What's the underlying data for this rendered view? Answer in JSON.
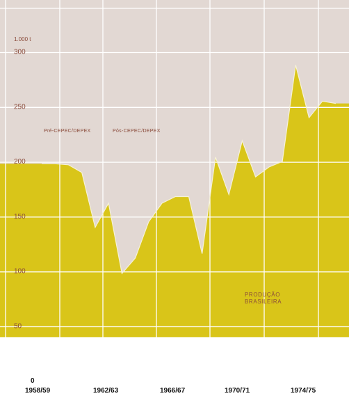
{
  "chart_data": {
    "type": "area",
    "unit_label": "1.000 t",
    "y_zero_label": "0",
    "period_labels": [
      "Pré-CEPEC/DEPEX",
      "Pós-CEPEC/DEPEX"
    ],
    "series": [
      {
        "name": "PRODUÇÃO BRASILEIRA",
        "name_lines": [
          "PRODUÇÃO",
          "BRASILEIRA"
        ],
        "x": [
          1955,
          1956,
          1957,
          1958,
          1959,
          1960,
          1961,
          1962,
          1963,
          1964,
          1965,
          1966,
          1967,
          1968,
          1969,
          1970,
          1971,
          1972,
          1973,
          1974,
          1975,
          1976,
          1977
        ],
        "values": [
          198,
          198,
          197,
          190,
          140,
          162,
          98,
          112,
          145,
          162,
          168,
          168,
          116,
          204,
          170,
          219,
          186,
          195,
          200,
          288,
          240,
          255,
          253
        ],
        "color": "#d9c519"
      }
    ],
    "y_ticks": [
      50,
      100,
      150,
      200,
      250,
      300
    ],
    "x_tick_labels": [
      "1958/59",
      "1962/63",
      "1966/67",
      "1970/71",
      "1974/75"
    ],
    "x_tick_positions": [
      1958,
      1962,
      1966,
      1970,
      1974
    ],
    "ylim": [
      25,
      335
    ],
    "xlim": [
      1955,
      1977
    ],
    "grid": true,
    "background_color": "#e2d8d3",
    "grid_color": "#ffffff",
    "axis_label_color": "#8a4a3a"
  }
}
